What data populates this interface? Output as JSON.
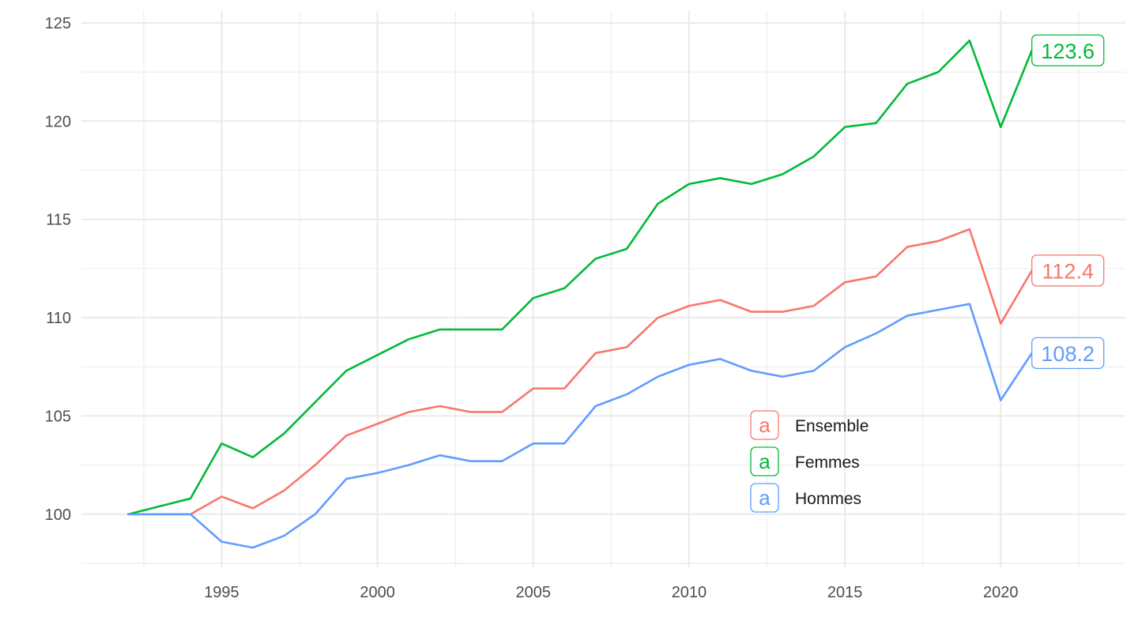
{
  "chart_data": {
    "type": "line",
    "title": "",
    "xlabel": "",
    "ylabel": "",
    "xlim": [
      1990.5,
      2024
    ],
    "ylim": [
      97.3,
      125.6
    ],
    "x_ticks": [
      1995,
      2000,
      2005,
      2010,
      2015,
      2020
    ],
    "y_ticks": [
      100,
      105,
      110,
      115,
      120,
      125
    ],
    "x_tick_labels": [
      "1995",
      "2000",
      "2005",
      "2010",
      "2015",
      "2020"
    ],
    "y_tick_labels": [
      "100",
      "105",
      "110",
      "115",
      "120",
      "125"
    ],
    "grid": true,
    "legend_position": "bottom-right-inside",
    "x": [
      1992,
      1993,
      1994,
      1995,
      1996,
      1997,
      1998,
      1999,
      2000,
      2001,
      2002,
      2003,
      2004,
      2005,
      2006,
      2007,
      2008,
      2009,
      2010,
      2011,
      2012,
      2013,
      2014,
      2015,
      2016,
      2017,
      2018,
      2019,
      2020,
      2021
    ],
    "series": [
      {
        "name": "Ensemble",
        "color": "#F8766D",
        "values": [
          100,
          100,
          100,
          100.9,
          100.3,
          101.2,
          102.5,
          104,
          104.6,
          105.2,
          105.5,
          105.2,
          105.2,
          106.4,
          106.4,
          108.2,
          108.5,
          110,
          110.6,
          110.9,
          110.3,
          110.3,
          110.6,
          111.8,
          112.1,
          113.6,
          113.9,
          114.5,
          109.7,
          112.4
        ],
        "end_label": "112.4"
      },
      {
        "name": "Femmes",
        "color": "#00BA38",
        "values": [
          100,
          100.4,
          100.8,
          103.6,
          102.9,
          104.1,
          105.7,
          107.3,
          108.1,
          108.9,
          109.4,
          109.4,
          109.4,
          111,
          111.5,
          113,
          113.5,
          115.8,
          116.8,
          117.1,
          116.8,
          117.3,
          118.2,
          119.7,
          119.9,
          121.9,
          122.5,
          124.1,
          119.7,
          123.6
        ],
        "end_label": "123.6"
      },
      {
        "name": "Hommes",
        "color": "#619CFF",
        "values": [
          100,
          100,
          100,
          98.6,
          98.3,
          98.9,
          100,
          101.8,
          102.1,
          102.5,
          103,
          102.7,
          102.7,
          103.6,
          103.6,
          105.5,
          106.1,
          107,
          107.6,
          107.9,
          107.3,
          107,
          107.3,
          108.5,
          109.2,
          110.1,
          110.4,
          110.7,
          105.8,
          108.2
        ],
        "end_label": "108.2"
      }
    ]
  },
  "legend": {
    "key_glyph": "a",
    "items": [
      "Ensemble",
      "Femmes",
      "Hommes"
    ]
  }
}
